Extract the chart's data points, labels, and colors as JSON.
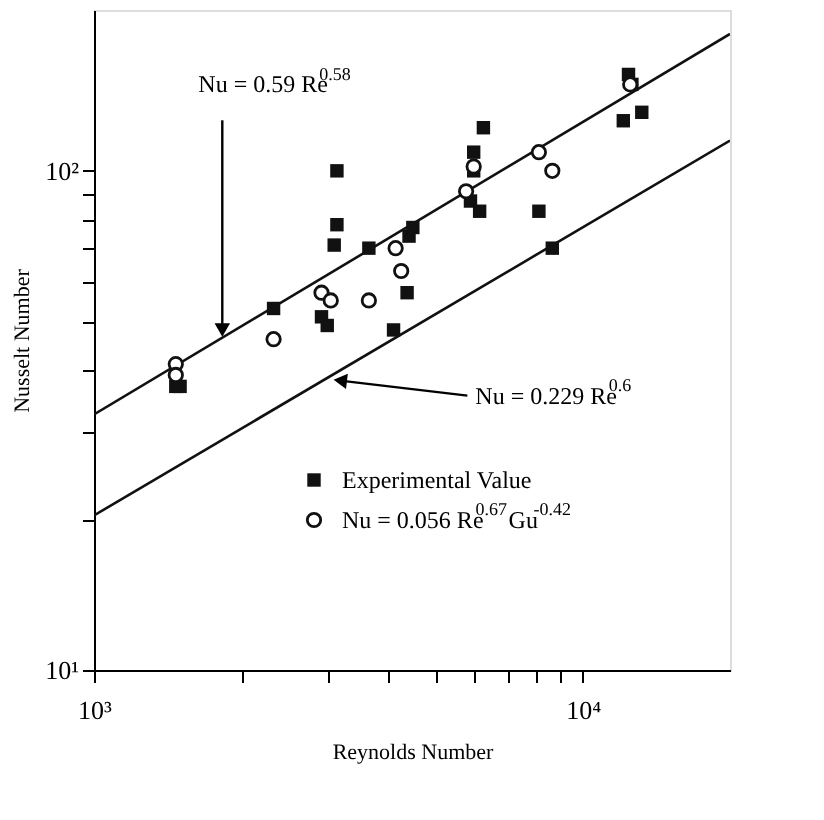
{
  "chart_data": {
    "type": "scatter",
    "xlabel": "Reynolds Number",
    "ylabel": "Nusselt Number",
    "log": "xy",
    "grid": false,
    "legend": "bottom",
    "xlim": [
      1000,
      20000
    ],
    "ylim": [
      10,
      210
    ],
    "xticks": [
      {
        "value": 1000,
        "label": "10³"
      },
      {
        "value": 2000,
        "label": null
      },
      {
        "value": 3000,
        "label": null
      },
      {
        "value": 4000,
        "label": null
      },
      {
        "value": 5000,
        "label": null
      },
      {
        "value": 6000,
        "label": null
      },
      {
        "value": 7000,
        "label": null
      },
      {
        "value": 8000,
        "label": null
      },
      {
        "value": 9000,
        "label": null
      },
      {
        "value": 10000,
        "label": "10⁴"
      }
    ],
    "yticks": [
      {
        "value": 10,
        "label": "10¹"
      },
      {
        "value": 20,
        "label": null
      },
      {
        "value": 30,
        "label": null
      },
      {
        "value": 40,
        "label": null
      },
      {
        "value": 50,
        "label": null
      },
      {
        "value": 60,
        "label": null
      },
      {
        "value": 70,
        "label": null
      },
      {
        "value": 80,
        "label": null
      },
      {
        "value": 90,
        "label": null
      },
      {
        "value": 100,
        "label": "10²"
      }
    ],
    "series": [
      {
        "name": "Experimental Value",
        "marker": "square",
        "color": "#111111",
        "x": [
          1470,
          1500,
          2330,
          2920,
          3000,
          3140,
          3140,
          3100,
          3650,
          4100,
          4370,
          4410,
          4490,
          5980,
          5980,
          6260,
          5890,
          6150,
          8130,
          8660,
          12400,
          12600,
          12100,
          13200
        ],
        "values": [
          37,
          37,
          53,
          51,
          49,
          100,
          78,
          71,
          70,
          48,
          57,
          74,
          77,
          109,
          100,
          122,
          87,
          83,
          83,
          70,
          156,
          149,
          126,
          131
        ]
      },
      {
        "name": "Nu = 0.056 Re$^{0.67}$Gu$^{-0.42}$",
        "marker": "circle",
        "color": "#111111",
        "x": [
          1470,
          1470,
          2330,
          2920,
          3050,
          3650,
          4140,
          4250,
          5770,
          5980,
          8130,
          8660,
          12500
        ],
        "values": [
          41,
          39,
          46,
          57,
          55,
          55,
          70,
          63,
          91,
          102,
          109,
          100,
          149
        ]
      },
      {
        "type": "line",
        "color": "#111111",
        "x": [
          1000,
          20000
        ],
        "values": [
          32.5,
          188
        ]
      },
      {
        "type": "line",
        "color": "#111111",
        "x": [
          1000,
          20000
        ],
        "values": [
          20.4,
          115
        ]
      }
    ],
    "annotations": [
      {
        "text": "Nu = 0.59 Re$^{0.58}$",
        "x": 1830,
        "y": 48
      },
      {
        "text": "Nu = 0.229 Re$^{0.6}$",
        "x": 3190,
        "y": 38
      }
    ]
  }
}
